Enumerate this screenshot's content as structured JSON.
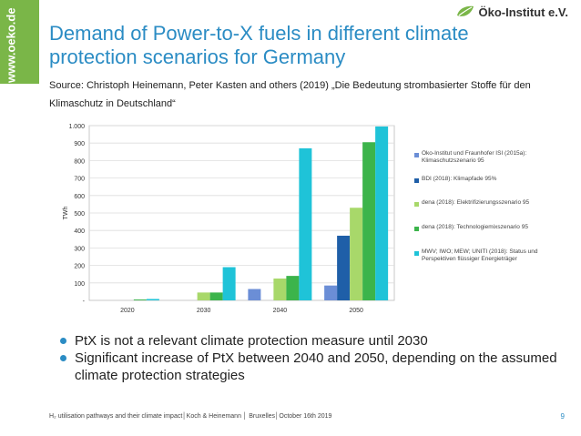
{
  "sidebar": {
    "url": "www.oeko.de"
  },
  "logo": {
    "text": "Öko-Institut e.V."
  },
  "slide": {
    "title": "Demand of Power-to-X fuels in different climate protection scenarios for Germany",
    "source": "Source: Christoph Heinemann, Peter Kasten and others (2019) „Die Bedeutung strombasierter Stoffe für den Klimaschutz in Deutschland“",
    "bullets": [
      "PtX is not a relevant climate protection measure until 2030",
      "Significant increase of PtX between 2040 and 2050, depending on the assumed climate protection strategies"
    ]
  },
  "footer": {
    "text": "H₂ utilisation pathways and their climate impact│Koch & Heinemann │ Bruxelles│October 16th 2019",
    "page": "9"
  },
  "chart_data": {
    "type": "bar",
    "ylabel": "TWh",
    "ylim": [
      0,
      1000
    ],
    "yticks": [
      0,
      100,
      200,
      300,
      400,
      500,
      600,
      700,
      800,
      900,
      1000
    ],
    "ytick_labels": [
      "-",
      "100",
      "200",
      "300",
      "400",
      "500",
      "600",
      "700",
      "800",
      "900",
      "1.000"
    ],
    "categories": [
      "2020",
      "2030",
      "2040",
      "2050"
    ],
    "series": [
      {
        "name": "Öko-Institut und Fraunhofer ISI (2015a): Klimaschutzszenario 95",
        "color": "#6b8ed6",
        "values": [
          0,
          0,
          65,
          85
        ]
      },
      {
        "name": "BDI (2018): Klimapfade 95%",
        "color": "#1f5fa8",
        "values": [
          0,
          0,
          0,
          370
        ]
      },
      {
        "name": "dena (2018): Elektrifizierungsszenario 95",
        "color": "#a8d86a",
        "values": [
          0,
          45,
          125,
          530
        ]
      },
      {
        "name": "dena (2018): Technologiemixszenario 95",
        "color": "#3cb44b",
        "values": [
          5,
          45,
          140,
          905
        ]
      },
      {
        "name": "MWV; IWO; MEW; UNITI (2018): Status und Perspektiven flüssiger Energieträger",
        "color": "#1fc3d8",
        "values": [
          8,
          190,
          870,
          995
        ]
      }
    ],
    "legend_position": "right",
    "grid": true
  }
}
